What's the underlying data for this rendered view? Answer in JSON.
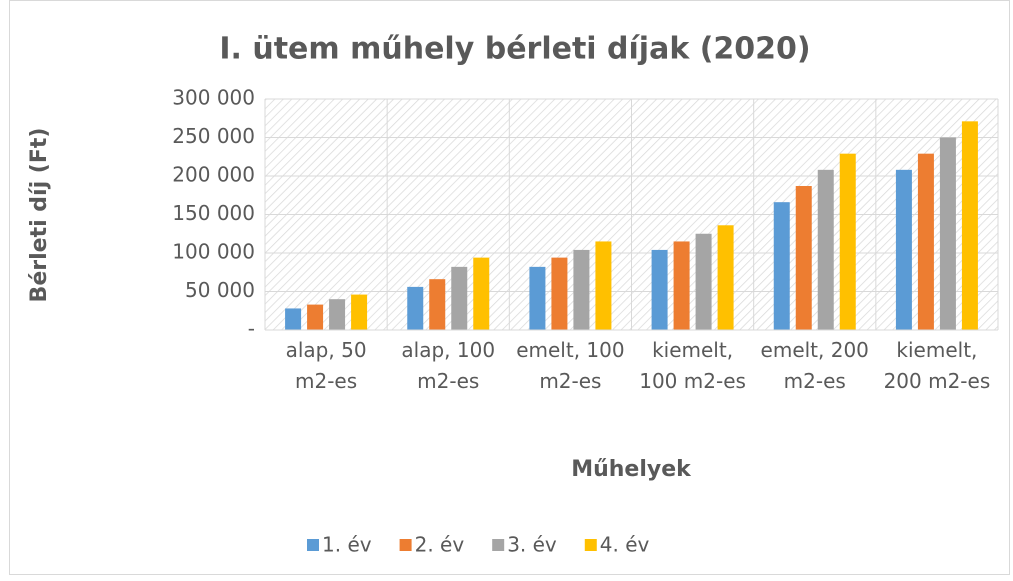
{
  "chart_data": {
    "type": "bar",
    "title": "I. ütem műhely bérleti díjak (2020)",
    "x_label": "Műhelyek",
    "y_label": "Bérleti díj (Ft)",
    "categories": [
      "alap, 50 m2-es",
      "alap, 100 m2-es",
      "emelt, 100 m2-es",
      "kiemelt, 100 m2-es",
      "emelt, 200 m2-es",
      "kiemelt, 200 m2-es"
    ],
    "series": [
      {
        "name": "1. év",
        "color": "#5b9bd5",
        "values": [
          28000,
          56000,
          82000,
          104000,
          166000,
          208000
        ]
      },
      {
        "name": "2. év",
        "color": "#ed7d31",
        "values": [
          33000,
          66000,
          94000,
          115000,
          187000,
          229000
        ]
      },
      {
        "name": "3. év",
        "color": "#a5a5a5",
        "values": [
          40000,
          82000,
          104000,
          125000,
          208000,
          250000
        ]
      },
      {
        "name": "4. év",
        "color": "#ffc000",
        "values": [
          46000,
          94000,
          115000,
          136000,
          229000,
          271000
        ]
      }
    ],
    "ylim": [
      0,
      300000
    ],
    "yticks": [
      {
        "value": 0,
        "label": "-"
      },
      {
        "value": 50000,
        "label": "50 000"
      },
      {
        "value": 100000,
        "label": "100 000"
      },
      {
        "value": 150000,
        "label": "150 000"
      },
      {
        "value": 200000,
        "label": "200 000"
      },
      {
        "value": 250000,
        "label": "250 000"
      },
      {
        "value": 300000,
        "label": "300 000"
      }
    ],
    "grid": true,
    "legend": "bottom"
  }
}
